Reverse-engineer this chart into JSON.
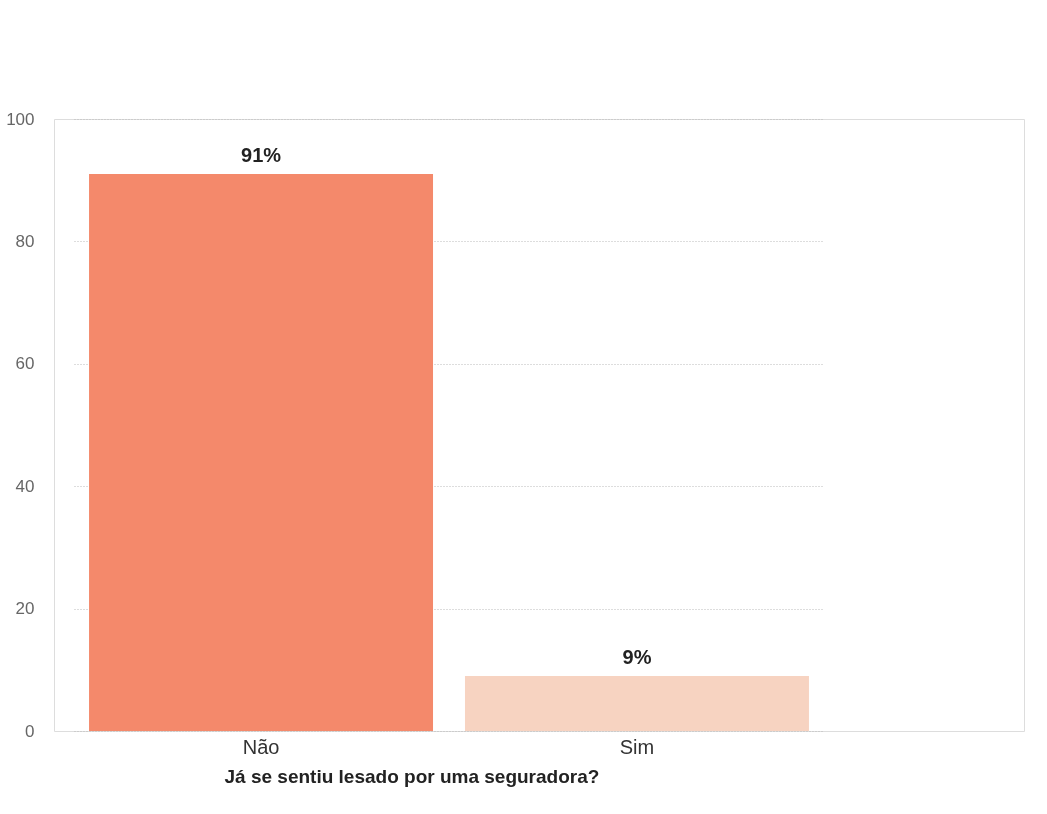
{
  "chart_data": {
    "type": "bar",
    "xlabel": "Já se sentiu lesado por uma seguradora?",
    "categories": [
      "Não",
      "Sim"
    ],
    "values": [
      91,
      9
    ],
    "colors": [
      "#f4896b",
      "#f7d3c1"
    ],
    "value_labels": [
      "91%",
      "9%"
    ],
    "ylim": [
      0,
      100
    ],
    "yticks": [
      0,
      20,
      40,
      60,
      80,
      100
    ],
    "grid": "y"
  }
}
